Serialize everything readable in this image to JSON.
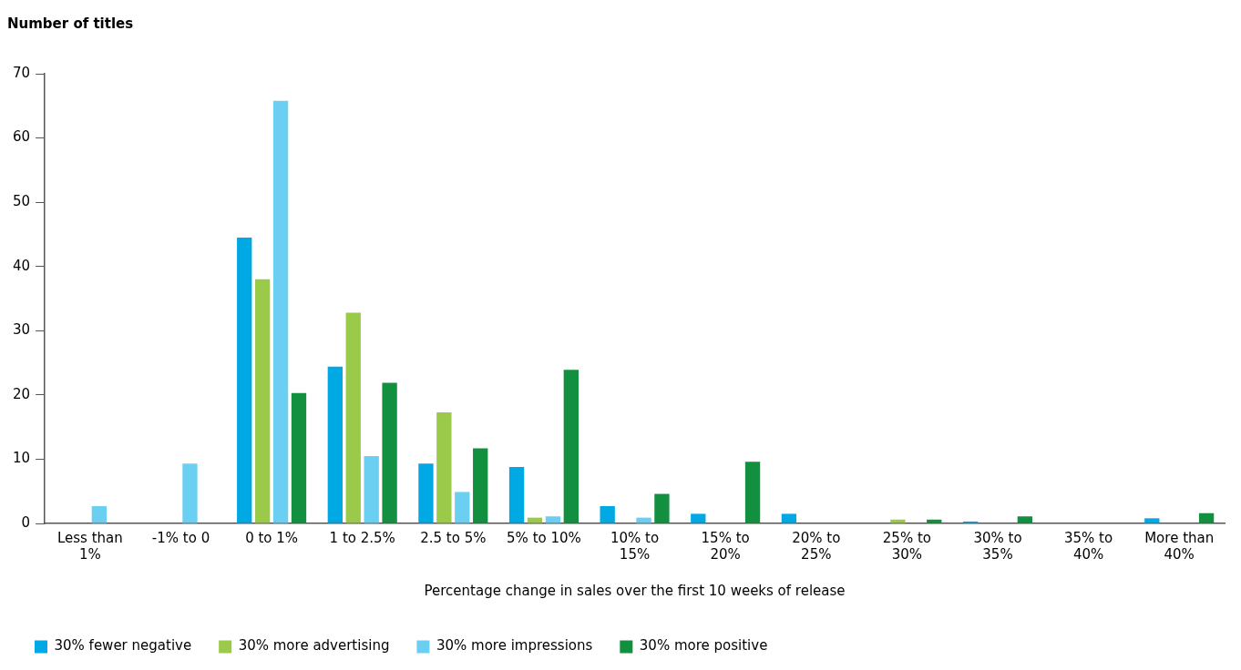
{
  "chart_data": {
    "type": "bar",
    "ylabel": "Number of titles",
    "xlabel": "Percentage change in sales over the first 10 weeks of release",
    "categories": [
      "Less than 1%",
      "-1% to 0",
      "0 to 1%",
      "1 to 2.5%",
      "2.5 to 5%",
      "5% to 10%",
      "10% to 15%",
      "15% to 20%",
      "20% to 25%",
      "25% to 30%",
      "30% to 35%",
      "35% to 40%",
      "More than 40%"
    ],
    "series": [
      {
        "name": "30% fewer negative",
        "color": "#00a9e4",
        "values": [
          0,
          0,
          44.5,
          24.4,
          9.3,
          8.8,
          2.7,
          1.5,
          1.5,
          0,
          0.3,
          0,
          0.8
        ]
      },
      {
        "name": "30% more advertising",
        "color": "#9bc94a",
        "values": [
          0,
          0,
          38,
          32.8,
          17.3,
          0.9,
          0,
          0,
          0,
          0.6,
          0,
          0,
          0
        ]
      },
      {
        "name": "30% more impressions",
        "color": "#6bcff2",
        "values": [
          2.7,
          9.3,
          65.8,
          10.5,
          4.9,
          1.1,
          0.9,
          0,
          0,
          0,
          0,
          0,
          0
        ]
      },
      {
        "name": "30% more positive",
        "color": "#13903f",
        "values": [
          0,
          0,
          20.3,
          21.9,
          11.7,
          23.9,
          4.6,
          9.6,
          0,
          0.6,
          1.1,
          0,
          1.6
        ]
      }
    ],
    "ylim": [
      0,
      70
    ],
    "yticks": [
      0,
      10,
      20,
      30,
      40,
      50,
      60,
      70
    ],
    "grid": false,
    "legend": "bottom left"
  }
}
